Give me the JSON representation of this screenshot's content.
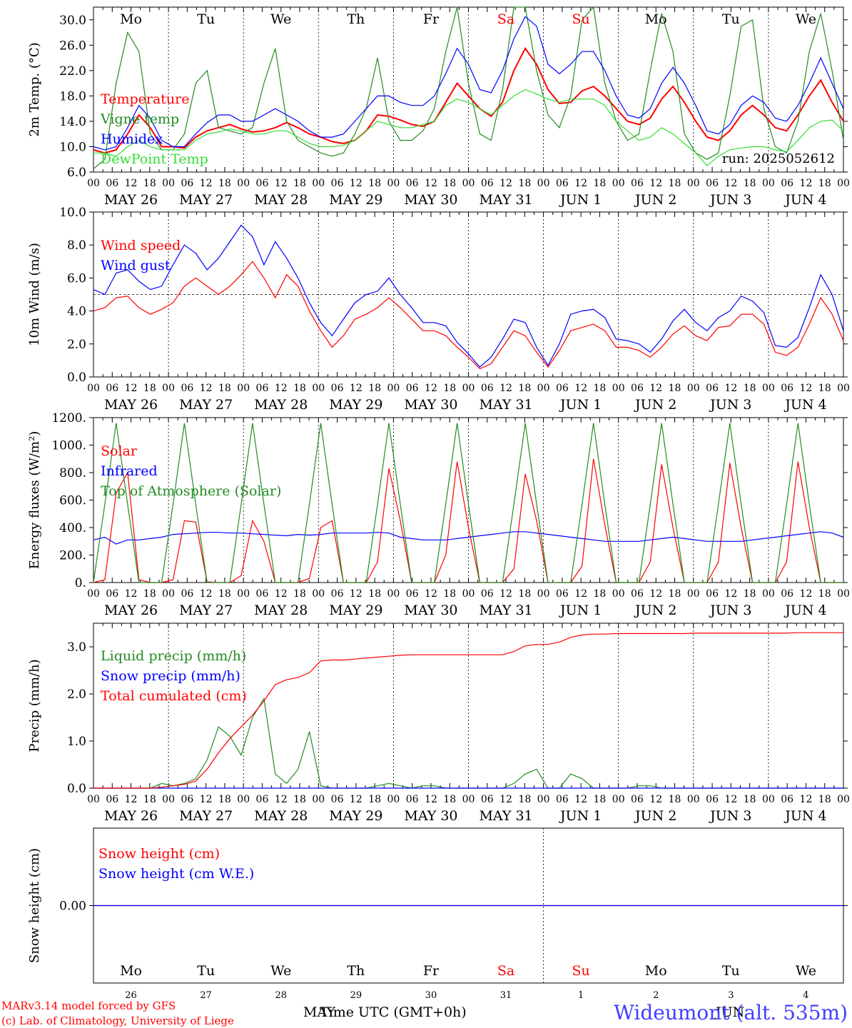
{
  "header": {
    "day_labels": [
      "Mo",
      "Tu",
      "We",
      "Th",
      "Fr",
      "Sa",
      "Su",
      "Mo",
      "Tu",
      "We"
    ],
    "weekend_color": "#ff0000",
    "date_labels": [
      "MAY 26",
      "MAY 27",
      "MAY 28",
      "MAY 29",
      "MAY 30",
      "MAY 31",
      "JUN  1",
      "JUN  2",
      "JUN  3",
      "JUN  4"
    ],
    "hour_labels": [
      "00",
      "06",
      "12",
      "18"
    ],
    "last_hour_label": "00"
  },
  "footer": {
    "credit_line_1": "MARv3.14 model forced by GFS",
    "credit_line_2": "(c) Lab. of Climatology, University of Liege",
    "xlabel": "Time UTC (GMT+0h)",
    "month_left": "MAY",
    "month_right": "JUN",
    "station": "Wideumont (alt. 535m)",
    "day_numbers": [
      "26",
      "27",
      "28",
      "29",
      "30",
      "31",
      "1",
      "2",
      "3",
      "4"
    ]
  },
  "colors": {
    "red": "#ff0000",
    "darkgreen": "#228b22",
    "blue": "#0000ff",
    "lightgreen": "#33dd33",
    "station": "#4040ff"
  },
  "chart_data": [
    {
      "type": "line",
      "ylabel": "2m Temp. (°C)",
      "ylim": [
        6,
        32
      ],
      "yticks": [
        6,
        10,
        14,
        18,
        22,
        26,
        30
      ],
      "ytick_labels": [
        "6.0",
        "10.0",
        "14.0",
        "18.0",
        "22.0",
        "26.0",
        "30.0"
      ],
      "run_label": "run: 2025052612",
      "x_hours_step": 6,
      "series": [
        {
          "name": "Temperature",
          "color": "#ff0000",
          "values": [
            9.5,
            9,
            9.5,
            12,
            15,
            13,
            10,
            10,
            9.8,
            11.5,
            12.5,
            13,
            13.5,
            12.8,
            12.3,
            12.5,
            13,
            13.8,
            13,
            12,
            11.5,
            10.8,
            10.5,
            11,
            12.5,
            15,
            14.8,
            14.2,
            13.5,
            13.2,
            14,
            17,
            20,
            18,
            16,
            14.8,
            17,
            22,
            25.5,
            23,
            19,
            16.8,
            17,
            18.8,
            19.5,
            18,
            16,
            14,
            13.5,
            14.5,
            17.5,
            19.5,
            17,
            14,
            11.5,
            11,
            12.5,
            15,
            16.5,
            15,
            13,
            12.5,
            15,
            18,
            20.5,
            17,
            14
          ]
        },
        {
          "name": "Vigne temp",
          "color": "#228b22",
          "values": [
            6.5,
            8,
            20,
            28,
            25,
            12,
            9.5,
            9.5,
            12,
            20,
            22,
            13,
            12.5,
            12,
            13,
            20,
            25.5,
            14,
            11,
            10,
            9,
            8.5,
            9,
            12,
            16,
            24,
            14,
            11,
            11,
            12.5,
            16,
            25,
            33,
            20,
            12,
            11,
            19,
            33,
            34,
            22,
            15,
            13,
            18,
            30,
            32,
            20,
            14,
            11,
            12,
            22,
            31,
            25,
            12,
            9,
            8,
            9,
            18,
            29,
            30,
            16,
            10,
            9,
            14,
            25,
            31,
            22,
            11
          ]
        },
        {
          "name": "Humidex",
          "color": "#0000ff",
          "values": [
            10,
            9.5,
            10,
            13,
            16.5,
            14.5,
            11,
            10,
            10,
            12,
            13.8,
            15,
            15,
            14,
            14,
            15,
            16,
            15,
            14,
            12.5,
            11.5,
            11.5,
            12,
            14,
            16,
            18,
            18,
            17,
            16.5,
            16.5,
            18,
            21.5,
            25.5,
            23,
            19,
            18.5,
            22,
            27,
            30.5,
            29,
            23,
            21.5,
            23,
            25,
            25,
            22,
            18,
            15,
            14.5,
            16,
            20,
            22.5,
            20,
            16.5,
            12.5,
            12,
            13.5,
            16.5,
            18,
            17,
            14.5,
            14,
            16.5,
            20,
            24,
            20,
            16
          ]
        },
        {
          "name": "DewPoint Temp",
          "color": "#33dd33",
          "values": [
            9,
            9,
            8.5,
            10,
            11,
            10,
            9.5,
            9.5,
            9.5,
            11,
            12,
            12.3,
            12.8,
            12.5,
            12,
            12,
            12.5,
            12.5,
            11.5,
            10.5,
            10,
            10,
            10.2,
            11,
            12.5,
            14,
            13.5,
            13,
            13,
            13.5,
            14,
            16.5,
            17.5,
            17,
            16,
            15,
            16.5,
            18,
            19,
            18.3,
            17.5,
            17,
            17.5,
            17.5,
            17.5,
            16.5,
            14,
            12.5,
            11,
            11.5,
            13,
            12,
            10.5,
            9,
            7,
            8.5,
            9.5,
            9.8,
            10,
            10,
            9.5,
            9.2,
            11,
            13,
            14,
            14.2,
            12.5
          ]
        }
      ]
    },
    {
      "type": "line",
      "ylabel": "10m Wind (m/s)",
      "ylim": [
        0,
        10
      ],
      "yticks": [
        0,
        2,
        4,
        6,
        8,
        10
      ],
      "ytick_labels": [
        "0.0",
        "2.0",
        "4.0",
        "6.0",
        "8.0",
        "10.0"
      ],
      "reference_line": 5,
      "x_hours_step": 6,
      "series": [
        {
          "name": "Wind speed",
          "color": "#ff0000",
          "values": [
            4,
            4.2,
            4.8,
            4.9,
            4.2,
            3.8,
            4.1,
            4.5,
            5.5,
            6,
            5.5,
            5,
            5.5,
            6.2,
            7,
            6,
            4.8,
            6.2,
            5.5,
            4,
            2.8,
            1.8,
            2.5,
            3.5,
            3.8,
            4.2,
            4.8,
            4.2,
            3.5,
            2.8,
            2.8,
            2.5,
            1.8,
            1.2,
            0.5,
            0.8,
            1.8,
            2.8,
            2.5,
            1.5,
            0.6,
            1.6,
            2.8,
            3,
            3.2,
            2.8,
            1.8,
            1.8,
            1.6,
            1.2,
            1.8,
            2.6,
            3.1,
            2.5,
            2.2,
            3,
            3.1,
            3.8,
            3.8,
            3.2,
            1.5,
            1.3,
            1.8,
            3.2,
            4.8,
            3.8,
            2.2
          ]
        },
        {
          "name": "Wind gust",
          "color": "#0000ff",
          "values": [
            5.3,
            5,
            6.3,
            6.5,
            5.8,
            5.3,
            5.5,
            6.8,
            8,
            7.5,
            6.5,
            7.2,
            8.2,
            9.2,
            8.5,
            6.8,
            8.2,
            7.2,
            6,
            4.5,
            3.3,
            2.5,
            3.5,
            4.5,
            5,
            5.2,
            6,
            5,
            4.2,
            3.3,
            3.3,
            3.1,
            2.1,
            1.4,
            0.6,
            1.2,
            2.3,
            3.5,
            3.3,
            1.8,
            0.7,
            2,
            3.8,
            4,
            4.1,
            3.6,
            2.3,
            2.2,
            2,
            1.5,
            2.3,
            3.4,
            4.1,
            3.3,
            2.8,
            3.6,
            4,
            4.9,
            4.6,
            3.9,
            1.9,
            1.8,
            2.4,
            4.2,
            6.2,
            5,
            2.8
          ]
        }
      ]
    },
    {
      "type": "line",
      "ylabel": "Energy fluxes (W/m²)",
      "ylim": [
        0,
        1200
      ],
      "yticks": [
        0,
        200,
        400,
        600,
        800,
        1000,
        1200
      ],
      "ytick_labels": [
        "0.",
        "200.",
        "400.",
        "600.",
        "800.",
        "1000.",
        "1200."
      ],
      "x_hours_step": 6,
      "series": [
        {
          "name": "Solar",
          "color": "#ff0000",
          "values": [
            0,
            20,
            650,
            800,
            20,
            0,
            0,
            20,
            450,
            440,
            5,
            0,
            0,
            50,
            450,
            300,
            0,
            0,
            0,
            30,
            400,
            450,
            0,
            0,
            0,
            150,
            830,
            450,
            0,
            0,
            0,
            200,
            880,
            400,
            0,
            0,
            0,
            100,
            790,
            450,
            0,
            0,
            0,
            120,
            900,
            420,
            0,
            0,
            0,
            150,
            860,
            400,
            0,
            0,
            0,
            150,
            870,
            400,
            0,
            0,
            0,
            150,
            880,
            400,
            0,
            0,
            0
          ]
        },
        {
          "name": "Infrared",
          "color": "#0000ff",
          "values": [
            310,
            330,
            280,
            310,
            310,
            320,
            330,
            350,
            355,
            360,
            365,
            365,
            360,
            360,
            355,
            350,
            345,
            340,
            350,
            345,
            350,
            360,
            360,
            360,
            360,
            365,
            360,
            330,
            320,
            310,
            310,
            310,
            320,
            330,
            340,
            350,
            360,
            370,
            370,
            360,
            350,
            340,
            330,
            320,
            310,
            300,
            300,
            300,
            300,
            310,
            320,
            330,
            320,
            310,
            300,
            300,
            300,
            300,
            310,
            320,
            330,
            340,
            350,
            360,
            370,
            360,
            330
          ]
        },
        {
          "name": "Top of Atmosphere (Solar)",
          "color": "#228b22",
          "values": [
            0,
            570,
            1160,
            570,
            0,
            0,
            0,
            570,
            1160,
            570,
            0,
            0,
            0,
            570,
            1160,
            570,
            0,
            0,
            0,
            570,
            1160,
            570,
            0,
            0,
            0,
            570,
            1160,
            570,
            0,
            0,
            0,
            570,
            1160,
            570,
            0,
            0,
            0,
            570,
            1160,
            570,
            0,
            0,
            0,
            570,
            1160,
            570,
            0,
            0,
            0,
            570,
            1160,
            570,
            0,
            0,
            0,
            570,
            1160,
            570,
            0,
            0,
            0,
            570,
            1160,
            570,
            0,
            0,
            0
          ]
        }
      ]
    },
    {
      "type": "line",
      "ylabel": "Precip (mm/h)",
      "ylim": [
        0,
        3.5
      ],
      "yticks": [
        0,
        1,
        2,
        3
      ],
      "ytick_labels": [
        "0.0",
        "1.0",
        "2.0",
        "3.0"
      ],
      "x_hours_step": 6,
      "series": [
        {
          "name": "Liquid precip (mm/h)",
          "color": "#228b22",
          "values": [
            0,
            0,
            0,
            0,
            0,
            0,
            0.1,
            0.05,
            0.1,
            0.2,
            0.6,
            1.3,
            1.1,
            0.7,
            1.5,
            1.9,
            0.3,
            0.1,
            0.4,
            1.2,
            0.05,
            0,
            0,
            0,
            0,
            0.05,
            0.1,
            0.05,
            0,
            0.05,
            0.05,
            0,
            0,
            0,
            0,
            0,
            0,
            0.1,
            0.3,
            0.4,
            0,
            0,
            0.3,
            0.2,
            0,
            0,
            0,
            0,
            0.05,
            0.05,
            0,
            0,
            0,
            0,
            0,
            0,
            0,
            0,
            0,
            0,
            0,
            0,
            0,
            0,
            0,
            0,
            0
          ]
        },
        {
          "name": "Snow precip (mm/h)",
          "color": "#0000ff",
          "values": [
            0,
            0,
            0,
            0,
            0,
            0,
            0,
            0,
            0,
            0,
            0,
            0,
            0,
            0,
            0,
            0,
            0,
            0,
            0,
            0,
            0,
            0,
            0,
            0,
            0,
            0,
            0,
            0,
            0,
            0,
            0,
            0,
            0,
            0,
            0,
            0,
            0,
            0,
            0,
            0,
            0,
            0,
            0,
            0,
            0,
            0,
            0,
            0,
            0,
            0,
            0,
            0,
            0,
            0,
            0,
            0,
            0,
            0,
            0,
            0,
            0,
            0,
            0,
            0,
            0,
            0,
            0
          ]
        },
        {
          "name": "Total cumulated (cm)",
          "color": "#ff0000",
          "values": [
            0,
            0,
            0,
            0,
            0,
            0,
            0.02,
            0.05,
            0.08,
            0.15,
            0.4,
            0.75,
            1.05,
            1.3,
            1.55,
            1.85,
            2.2,
            2.3,
            2.35,
            2.45,
            2.7,
            2.72,
            2.72,
            2.74,
            2.76,
            2.78,
            2.8,
            2.82,
            2.83,
            2.83,
            2.83,
            2.83,
            2.83,
            2.83,
            2.83,
            2.83,
            2.83,
            2.9,
            3.02,
            3.05,
            3.05,
            3.1,
            3.2,
            3.25,
            3.27,
            3.27,
            3.28,
            3.28,
            3.28,
            3.28,
            3.28,
            3.28,
            3.28,
            3.29,
            3.29,
            3.29,
            3.29,
            3.29,
            3.29,
            3.29,
            3.29,
            3.29,
            3.3,
            3.3,
            3.3,
            3.3,
            3.3
          ]
        }
      ]
    },
    {
      "type": "line",
      "ylabel": "Snow height (cm)",
      "ylim": [
        -1,
        1
      ],
      "yticks": [
        0
      ],
      "ytick_labels": [
        "0.00"
      ],
      "x_hours_step": 6,
      "series": [
        {
          "name": "Snow height (cm)",
          "color": "#ff0000",
          "values": [
            0,
            0,
            0,
            0,
            0,
            0,
            0,
            0,
            0,
            0,
            0,
            0,
            0,
            0,
            0,
            0,
            0,
            0,
            0,
            0,
            0,
            0,
            0,
            0,
            0,
            0,
            0,
            0,
            0,
            0,
            0,
            0,
            0,
            0,
            0,
            0,
            0,
            0,
            0,
            0,
            0,
            0,
            0,
            0,
            0,
            0,
            0,
            0,
            0,
            0,
            0,
            0,
            0,
            0,
            0,
            0,
            0,
            0,
            0,
            0,
            0,
            0,
            0,
            0,
            0,
            0,
            0
          ]
        },
        {
          "name": "Snow height (cm W.E.)",
          "color": "#0000ff",
          "values": [
            0,
            0,
            0,
            0,
            0,
            0,
            0,
            0,
            0,
            0,
            0,
            0,
            0,
            0,
            0,
            0,
            0,
            0,
            0,
            0,
            0,
            0,
            0,
            0,
            0,
            0,
            0,
            0,
            0,
            0,
            0,
            0,
            0,
            0,
            0,
            0,
            0,
            0,
            0,
            0,
            0,
            0,
            0,
            0,
            0,
            0,
            0,
            0,
            0,
            0,
            0,
            0,
            0,
            0,
            0,
            0,
            0,
            0,
            0,
            0,
            0,
            0,
            0,
            0,
            0,
            0,
            0
          ]
        }
      ]
    }
  ]
}
